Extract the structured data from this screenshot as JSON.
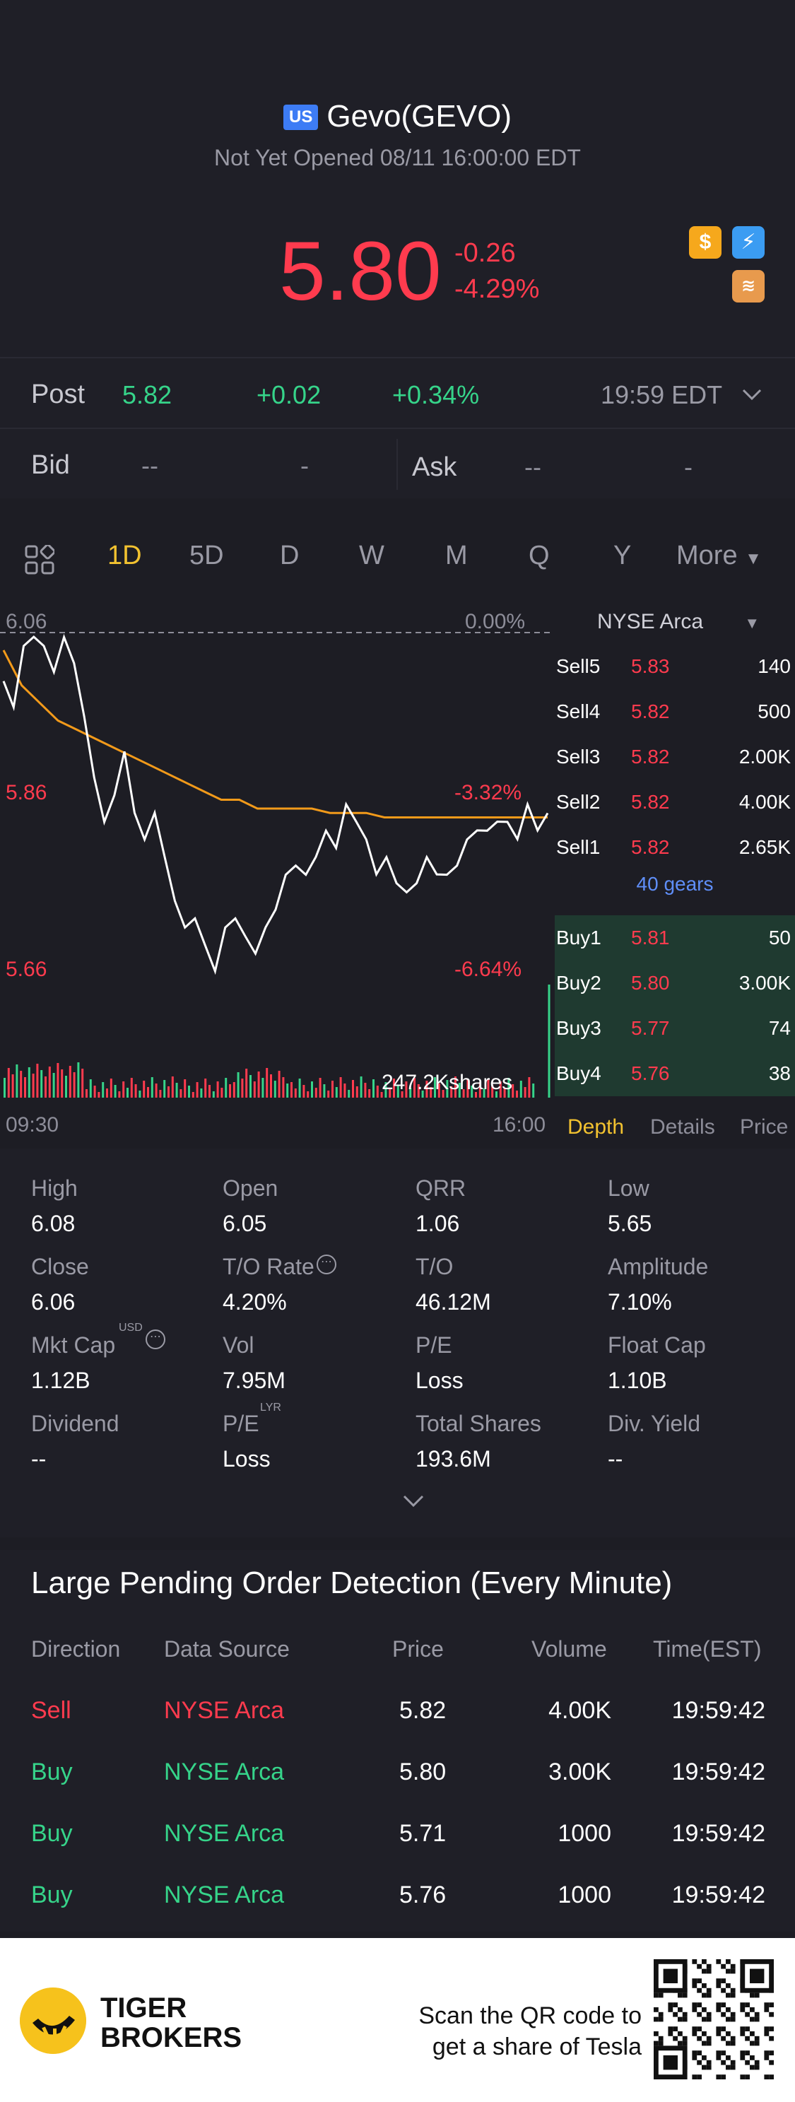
{
  "header": {
    "market_badge": "US",
    "title": "Gevo(GEVO)",
    "status": "Not Yet Opened 08/11 16:00:00 EDT",
    "price": "5.80",
    "change_abs": "-0.26",
    "change_pct": "-4.29%",
    "icons": [
      "dollar-icon",
      "flash-icon",
      "stack-icon"
    ],
    "colors": {
      "down": "#ff3b4e",
      "up": "#36d48a",
      "accent": "#f2c230"
    }
  },
  "post": {
    "label": "Post",
    "price": "5.82",
    "change": "+0.02",
    "pct": "+0.34%",
    "time": "19:59 EDT"
  },
  "bid": {
    "label": "Bid",
    "v1": "--",
    "v2": "-",
    "ask_label": "Ask",
    "a1": "--",
    "a2": "-"
  },
  "tabs": [
    "1D",
    "5D",
    "D",
    "W",
    "M",
    "Q",
    "Y",
    "More"
  ],
  "active_tab": "1D",
  "chart_data": {
    "type": "line",
    "x_start": "09:30",
    "x_end": "16:00",
    "y_labels": {
      "top": "6.06",
      "mid": "5.86",
      "bottom": "5.66"
    },
    "pct_labels": {
      "top": "0.00%",
      "mid": "-3.32%",
      "bottom": "-6.64%"
    },
    "ylim": [
      5.66,
      6.06
    ],
    "volume_label": "247.2Kshares",
    "series": [
      {
        "name": "price",
        "values": [
          6.0,
          5.98,
          6.04,
          6.06,
          6.04,
          6.02,
          6.05,
          6.03,
          5.96,
          5.9,
          5.84,
          5.88,
          5.92,
          5.86,
          5.82,
          5.86,
          5.8,
          5.76,
          5.72,
          5.74,
          5.7,
          5.68,
          5.72,
          5.74,
          5.71,
          5.7,
          5.72,
          5.75,
          5.78,
          5.8,
          5.78,
          5.81,
          5.83,
          5.82,
          5.86,
          5.85,
          5.82,
          5.79,
          5.8,
          5.78,
          5.76,
          5.78,
          5.8,
          5.79,
          5.78,
          5.8,
          5.82,
          5.84,
          5.83,
          5.85,
          5.84,
          5.83,
          5.86,
          5.84,
          5.85
        ]
      },
      {
        "name": "average",
        "values": [
          6.04,
          6.0,
          5.98,
          5.96,
          5.95,
          5.94,
          5.93,
          5.92,
          5.91,
          5.9,
          5.89,
          5.88,
          5.87,
          5.87,
          5.86,
          5.86,
          5.86,
          5.86,
          5.855,
          5.855,
          5.855,
          5.85,
          5.85,
          5.85,
          5.85,
          5.85,
          5.85,
          5.85,
          5.85,
          5.85,
          5.85
        ]
      }
    ]
  },
  "depth": {
    "exchange": "NYSE Arca",
    "sells": [
      {
        "label": "Sell5",
        "price": "5.83",
        "qty": "140"
      },
      {
        "label": "Sell4",
        "price": "5.82",
        "qty": "500"
      },
      {
        "label": "Sell3",
        "price": "5.82",
        "qty": "2.00K"
      },
      {
        "label": "Sell2",
        "price": "5.82",
        "qty": "4.00K"
      },
      {
        "label": "Sell1",
        "price": "5.82",
        "qty": "2.65K"
      }
    ],
    "gears": "40 gears",
    "buys": [
      {
        "label": "Buy1",
        "price": "5.81",
        "qty": "50"
      },
      {
        "label": "Buy2",
        "price": "5.80",
        "qty": "3.00K"
      },
      {
        "label": "Buy3",
        "price": "5.77",
        "qty": "74"
      },
      {
        "label": "Buy4",
        "price": "5.76",
        "qty": "38"
      }
    ],
    "tabs": [
      "Depth",
      "Details",
      "Price"
    ]
  },
  "stats": [
    {
      "label": "High",
      "value": "6.08"
    },
    {
      "label": "Open",
      "value": "6.05"
    },
    {
      "label": "QRR",
      "value": "1.06"
    },
    {
      "label": "Low",
      "value": "5.65"
    },
    {
      "label": "Close",
      "value": "6.06"
    },
    {
      "label": "T/O Rate",
      "value": "4.20%"
    },
    {
      "label": "T/O",
      "value": "46.12M"
    },
    {
      "label": "Amplitude",
      "value": "7.10%"
    },
    {
      "label": "Mkt Cap",
      "value": "1.12B"
    },
    {
      "label": "Vol",
      "value": "7.95M"
    },
    {
      "label": "P/E",
      "value": "Loss"
    },
    {
      "label": "Float Cap",
      "value": "1.10B"
    },
    {
      "label": "Dividend",
      "value": "--"
    },
    {
      "label": "P/E",
      "value": "Loss"
    },
    {
      "label": "Total Shares",
      "value": "193.6M"
    },
    {
      "label": "Div. Yield",
      "value": "--"
    }
  ],
  "stat_sups": {
    "usd": "USD",
    "lyr": "LYR"
  },
  "orders": {
    "title": "Large Pending Order Detection (Every Minute)",
    "headers": [
      "Direction",
      "Data Source",
      "Price",
      "Volume",
      "Time(EST)"
    ],
    "rows": [
      {
        "dir": "Sell",
        "source": "NYSE Arca",
        "price": "5.82",
        "volume": "4.00K",
        "time": "19:59:42"
      },
      {
        "dir": "Buy",
        "source": "NYSE Arca",
        "price": "5.80",
        "volume": "3.00K",
        "time": "19:59:42"
      },
      {
        "dir": "Buy",
        "source": "NYSE Arca",
        "price": "5.71",
        "volume": "1000",
        "time": "19:59:42"
      },
      {
        "dir": "Buy",
        "source": "NYSE Arca",
        "price": "5.76",
        "volume": "1000",
        "time": "19:59:42"
      }
    ]
  },
  "footer": {
    "brand_line1": "TIGER",
    "brand_line2": "BROKERS",
    "scan_line1": "Scan the QR code to",
    "scan_line2": "get a share of Tesla"
  }
}
